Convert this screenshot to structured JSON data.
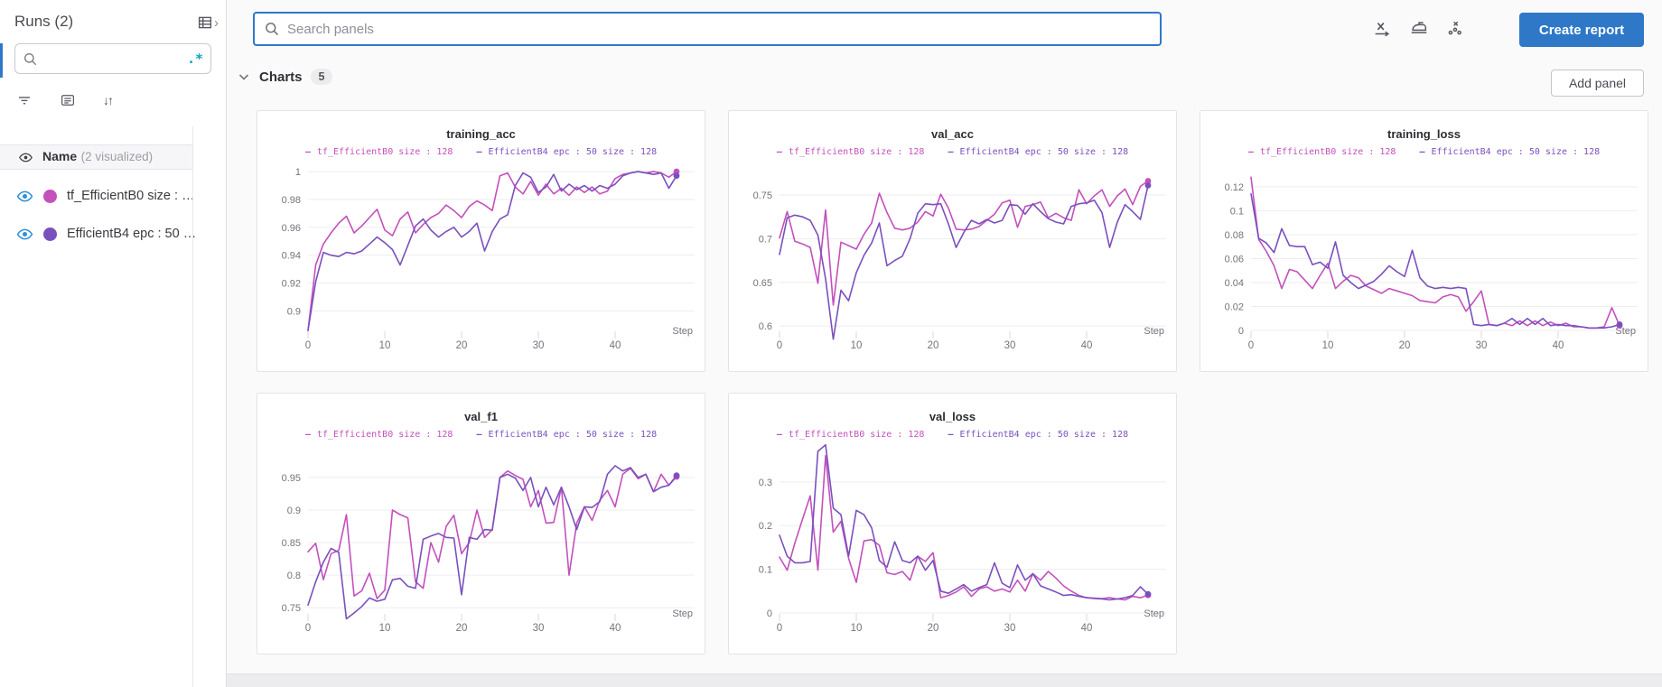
{
  "sidebar": {
    "title": "Runs (2)",
    "search_value": "",
    "regex_glyph": ".*",
    "sort_glyph": "↓↑",
    "chevron_right_glyph": "›",
    "table_header": {
      "name": "Name",
      "annotation": "(2 visualized)"
    },
    "runs": [
      {
        "label": "tf_EfficientB0 size : …",
        "color": "#c450bc"
      },
      {
        "label": "EfficientB4 epc : 50 …",
        "color": "#7a50be"
      }
    ]
  },
  "topbar": {
    "search_placeholder": "Search panels",
    "create_report_label": "Create report",
    "gear_glyph": "⚙",
    "accent_color": "#2e78c7"
  },
  "section": {
    "label": "Charts",
    "count": "5",
    "add_panel_label": "Add panel"
  },
  "chart_data": [
    {
      "type": "line",
      "title": "training_acc",
      "xlabel": "Step",
      "x_ticks": [
        0,
        10,
        20,
        30,
        40
      ],
      "x_max": 48,
      "grid": true,
      "legend_position": "top",
      "ylim": [
        0.886,
        1.002
      ],
      "y_tick_values": [
        1,
        0.98,
        0.96,
        0.94,
        0.92,
        0.9
      ],
      "y_tick_labels": [
        "1",
        "0.98",
        "0.96",
        "0.94",
        "0.92",
        "0.9"
      ],
      "series": [
        {
          "name": "tf_EfficientB0 size : 128",
          "color": "#c450bc",
          "values": [
            0.886,
            0.933,
            0.948,
            0.956,
            0.963,
            0.968,
            0.956,
            0.961,
            0.967,
            0.973,
            0.958,
            0.954,
            0.966,
            0.971,
            0.956,
            0.962,
            0.967,
            0.97,
            0.976,
            0.972,
            0.967,
            0.975,
            0.979,
            0.976,
            0.972,
            0.997,
            0.999,
            0.989,
            0.984,
            0.993,
            0.983,
            0.991,
            0.984,
            0.988,
            0.983,
            0.989,
            0.985,
            0.989,
            0.984,
            0.986,
            0.995,
            0.998,
            0.999,
            1.0,
            0.999,
            1.0,
            0.999,
            0.996,
            1.0
          ]
        },
        {
          "name": "EfficientB4 epc : 50 size : 128",
          "color": "#7a50be",
          "values": [
            0.886,
            0.921,
            0.942,
            0.94,
            0.939,
            0.942,
            0.941,
            0.943,
            0.948,
            0.953,
            0.949,
            0.944,
            0.933,
            0.947,
            0.961,
            0.966,
            0.958,
            0.953,
            0.957,
            0.96,
            0.953,
            0.957,
            0.963,
            0.943,
            0.957,
            0.966,
            0.969,
            0.99,
            0.999,
            0.996,
            0.985,
            0.989,
            0.998,
            0.986,
            0.991,
            0.987,
            0.99,
            0.986,
            0.99,
            0.988,
            0.991,
            0.997,
            0.999,
            1.0,
            0.999,
            0.998,
            0.999,
            0.988,
            0.997
          ]
        }
      ]
    },
    {
      "type": "line",
      "title": "val_acc",
      "xlabel": "Step",
      "x_ticks": [
        0,
        10,
        20,
        30,
        40
      ],
      "x_max": 48,
      "grid": true,
      "legend_position": "top",
      "ylim": [
        0.595,
        0.78
      ],
      "y_tick_values": [
        0.75,
        0.7,
        0.65,
        0.6
      ],
      "y_tick_labels": [
        "0.75",
        "0.7",
        "0.65",
        "0.6"
      ],
      "series": [
        {
          "name": "tf_EfficientB0 size : 128",
          "color": "#c450bc",
          "values": [
            0.701,
            0.731,
            0.697,
            0.694,
            0.69,
            0.649,
            0.733,
            0.624,
            0.696,
            0.692,
            0.688,
            0.705,
            0.718,
            0.752,
            0.73,
            0.712,
            0.71,
            0.712,
            0.719,
            0.731,
            0.726,
            0.751,
            0.735,
            0.711,
            0.71,
            0.711,
            0.714,
            0.721,
            0.728,
            0.741,
            0.744,
            0.713,
            0.737,
            0.739,
            0.742,
            0.724,
            0.729,
            0.724,
            0.721,
            0.756,
            0.74,
            0.749,
            0.756,
            0.737,
            0.749,
            0.757,
            0.739,
            0.76,
            0.766
          ]
        },
        {
          "name": "EfficientB4 epc : 50 size : 128",
          "color": "#7a50be",
          "values": [
            0.682,
            0.724,
            0.727,
            0.725,
            0.721,
            0.704,
            0.654,
            0.585,
            0.641,
            0.629,
            0.661,
            0.681,
            0.695,
            0.718,
            0.669,
            0.675,
            0.68,
            0.7,
            0.729,
            0.74,
            0.739,
            0.74,
            0.717,
            0.69,
            0.707,
            0.721,
            0.717,
            0.722,
            0.718,
            0.721,
            0.739,
            0.738,
            0.728,
            0.74,
            0.731,
            0.723,
            0.719,
            0.717,
            0.737,
            0.74,
            0.741,
            0.744,
            0.73,
            0.69,
            0.719,
            0.739,
            0.731,
            0.722,
            0.761
          ]
        }
      ]
    },
    {
      "type": "line",
      "title": "training_loss",
      "xlabel": "Step",
      "x_ticks": [
        0,
        10,
        20,
        30,
        40
      ],
      "x_max": 48,
      "grid": true,
      "legend_position": "top",
      "ylim": [
        0,
        0.135
      ],
      "y_tick_values": [
        0.12,
        0.1,
        0.08,
        0.06,
        0.04,
        0.02,
        0
      ],
      "y_tick_labels": [
        "0.12",
        "0.1",
        "0.08",
        "0.06",
        "0.04",
        "0.02",
        "0"
      ],
      "series": [
        {
          "name": "tf_EfficientB0 size : 128",
          "color": "#c450bc",
          "values": [
            0.128,
            0.076,
            0.066,
            0.054,
            0.035,
            0.051,
            0.049,
            0.042,
            0.035,
            0.046,
            0.056,
            0.035,
            0.041,
            0.046,
            0.044,
            0.037,
            0.034,
            0.031,
            0.035,
            0.033,
            0.031,
            0.029,
            0.025,
            0.024,
            0.023,
            0.028,
            0.03,
            0.028,
            0.016,
            0.024,
            0.033,
            0.005,
            0.004,
            0.006,
            0.004,
            0.008,
            0.004,
            0.008,
            0.004,
            0.007,
            0.004,
            0.006,
            0.003,
            0.003,
            0.002,
            0.002,
            0.003,
            0.019,
            0.004
          ]
        },
        {
          "name": "EfficientB4 epc : 50 size : 128",
          "color": "#7a50be",
          "values": [
            0.114,
            0.077,
            0.073,
            0.065,
            0.085,
            0.071,
            0.07,
            0.07,
            0.055,
            0.057,
            0.052,
            0.074,
            0.046,
            0.04,
            0.035,
            0.038,
            0.041,
            0.047,
            0.054,
            0.049,
            0.045,
            0.067,
            0.044,
            0.037,
            0.035,
            0.036,
            0.035,
            0.036,
            0.035,
            0.005,
            0.004,
            0.005,
            0.004,
            0.006,
            0.01,
            0.005,
            0.01,
            0.005,
            0.01,
            0.004,
            0.005,
            0.004,
            0.004,
            0.003,
            0.002,
            0.002,
            0.002,
            0.003,
            0.005
          ]
        }
      ]
    },
    {
      "type": "line",
      "title": "val_f1",
      "xlabel": "Step",
      "x_ticks": [
        0,
        10,
        20,
        30,
        40
      ],
      "x_max": 48,
      "grid": true,
      "legend_position": "top",
      "ylim": [
        0.742,
        0.99
      ],
      "y_tick_values": [
        0.95,
        0.9,
        0.85,
        0.8,
        0.75
      ],
      "y_tick_labels": [
        "0.95",
        "0.9",
        "0.85",
        "0.8",
        "0.75"
      ],
      "series": [
        {
          "name": "tf_EfficientB0 size : 128",
          "color": "#c450bc",
          "values": [
            0.836,
            0.849,
            0.793,
            0.833,
            0.838,
            0.893,
            0.768,
            0.776,
            0.803,
            0.764,
            0.777,
            0.9,
            0.893,
            0.888,
            0.79,
            0.78,
            0.85,
            0.82,
            0.875,
            0.892,
            0.833,
            0.85,
            0.9,
            0.858,
            0.87,
            0.95,
            0.96,
            0.953,
            0.947,
            0.905,
            0.93,
            0.88,
            0.881,
            0.935,
            0.8,
            0.88,
            0.905,
            0.884,
            0.915,
            0.93,
            0.905,
            0.955,
            0.964,
            0.948,
            0.955,
            0.928,
            0.955,
            0.938,
            0.951
          ]
        },
        {
          "name": "EfficientB4 epc : 50 size : 128",
          "color": "#7a50be",
          "values": [
            0.754,
            0.79,
            0.82,
            0.841,
            0.835,
            0.733,
            0.742,
            0.752,
            0.765,
            0.76,
            0.763,
            0.793,
            0.795,
            0.783,
            0.78,
            0.855,
            0.86,
            0.864,
            0.858,
            0.857,
            0.77,
            0.858,
            0.855,
            0.87,
            0.869,
            0.95,
            0.955,
            0.949,
            0.93,
            0.95,
            0.905,
            0.935,
            0.908,
            0.935,
            0.905,
            0.87,
            0.905,
            0.904,
            0.913,
            0.955,
            0.968,
            0.96,
            0.965,
            0.95,
            0.955,
            0.928,
            0.935,
            0.938,
            0.953
          ]
        }
      ]
    },
    {
      "type": "line",
      "title": "val_loss",
      "xlabel": "Step",
      "x_ticks": [
        0,
        10,
        20,
        30,
        40
      ],
      "x_max": 48,
      "grid": true,
      "legend_position": "top",
      "ylim": [
        0,
        0.37
      ],
      "y_tick_values": [
        0.3,
        0.2,
        0.1,
        0
      ],
      "y_tick_labels": [
        "0.3",
        "0.2",
        "0.1",
        "0"
      ],
      "series": [
        {
          "name": "tf_EfficientB0 size : 128",
          "color": "#c450bc",
          "values": [
            0.128,
            0.098,
            0.16,
            0.215,
            0.268,
            0.098,
            0.36,
            0.185,
            0.21,
            0.125,
            0.07,
            0.165,
            0.168,
            0.155,
            0.092,
            0.088,
            0.095,
            0.075,
            0.13,
            0.118,
            0.138,
            0.035,
            0.04,
            0.048,
            0.06,
            0.038,
            0.055,
            0.06,
            0.05,
            0.055,
            0.048,
            0.075,
            0.05,
            0.09,
            0.075,
            0.095,
            0.08,
            0.062,
            0.05,
            0.04,
            0.035,
            0.034,
            0.033,
            0.035,
            0.032,
            0.03,
            0.038,
            0.035,
            0.041
          ]
        },
        {
          "name": "EfficientB4 epc : 50 size : 128",
          "color": "#7a50be",
          "values": [
            0.178,
            0.13,
            0.115,
            0.115,
            0.118,
            0.37,
            0.385,
            0.24,
            0.225,
            0.13,
            0.235,
            0.225,
            0.195,
            0.12,
            0.105,
            0.163,
            0.12,
            0.115,
            0.13,
            0.098,
            0.12,
            0.05,
            0.045,
            0.055,
            0.065,
            0.05,
            0.058,
            0.065,
            0.115,
            0.068,
            0.058,
            0.11,
            0.075,
            0.09,
            0.062,
            0.055,
            0.048,
            0.04,
            0.042,
            0.038,
            0.035,
            0.033,
            0.032,
            0.03,
            0.032,
            0.035,
            0.04,
            0.06,
            0.043
          ]
        }
      ]
    }
  ]
}
